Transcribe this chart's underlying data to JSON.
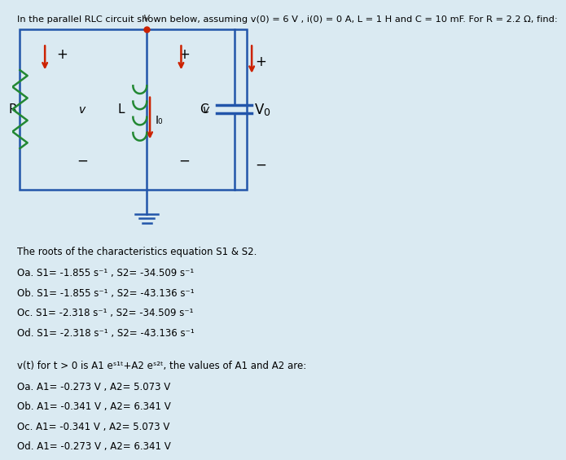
{
  "bg_color": "#daeaf2",
  "title_text": "In the parallel RLC circuit shown below, assuming v(0) = 6 V , i(0) = 0 A, L = 1 H and C = 10 mF. For R = 2.2 Ω, find:",
  "question1": "The roots of the characteristics equation S1 & S2.",
  "options1": [
    "Oa. S1= -1.855 s⁻¹ , S2= -34.509 s⁻¹",
    "Ob. S1= -1.855 s⁻¹ , S2= -43.136 s⁻¹",
    "Oc. S1= -2.318 s⁻¹ , S2= -34.509 s⁻¹",
    "Od. S1= -2.318 s⁻¹ , S2= -43.136 s⁻¹"
  ],
  "question2": "v(t) for t > 0 is A1 eˢ¹ᵗ+A2 eˢ²ᵗ, the values of A1 and A2 are:",
  "options2": [
    "Oa. A1= -0.273 V , A2= 5.073 V",
    "Ob. A1= -0.341 V , A2= 6.341 V",
    "Oc. A1= -0.341 V , A2= 5.073 V",
    "Od. A1= -0.273 V , A2= 6.341 V"
  ],
  "text_color": "#000000",
  "circuit_line_color": "#2255aa",
  "resistor_color": "#228833",
  "arrow_color": "#cc2200",
  "dot_color": "#cc2200",
  "ground_color": "#228833",
  "cap_color": "#2255aa",
  "inductor_color": "#228833"
}
